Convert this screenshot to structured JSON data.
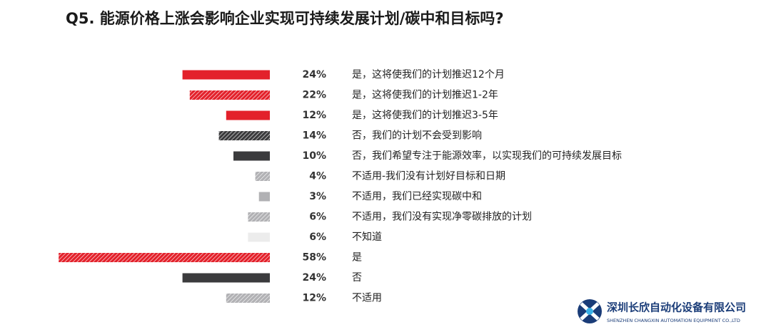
{
  "chart_data": {
    "type": "hbar",
    "title": "Q5. 能源价格上涨会影响企业实现可持续发展计划/碳中和目标吗?",
    "categories": [
      "是，这将使我们的计划推迟12个月",
      "是，这将使我们的计划推迟1-2年",
      "是，这将使我们的计划推迟3-5年",
      "否，我们的计划不会受到影响",
      "否，我们希望专注于能源效率，以实现我们的可持续发展目标",
      "不适用-我们没有计划好目标和日期",
      "不适用，我们已经实现碳中和",
      "不适用，我们没有实现净零碳排放的计划",
      "不知道",
      "是",
      "否",
      "不适用"
    ],
    "values": [
      24,
      22,
      12,
      14,
      10,
      4,
      3,
      6,
      6,
      58,
      24,
      12
    ],
    "value_labels": [
      "24%",
      "22%",
      "12%",
      "14%",
      "10%",
      "4%",
      "3%",
      "6%",
      "6%",
      "58%",
      "24%",
      "12%"
    ],
    "colors": [
      "#e3212b",
      "#e3212b",
      "#e3212b",
      "#3b3b3d",
      "#3b3b3d",
      "#b1b1b4",
      "#b1b1b4",
      "#b1b1b4",
      "#ececec",
      "#e3212b",
      "#3b3b3d",
      "#b1b1b4"
    ],
    "hatched": [
      false,
      true,
      false,
      true,
      false,
      true,
      false,
      true,
      false,
      true,
      false,
      true
    ]
  },
  "logo": {
    "name": "深圳长欣自动化设备有限公司",
    "subtitle": "SHENZHEN CHANGXIN AUTOMATION EQUIPMENT CO.,LTD"
  }
}
